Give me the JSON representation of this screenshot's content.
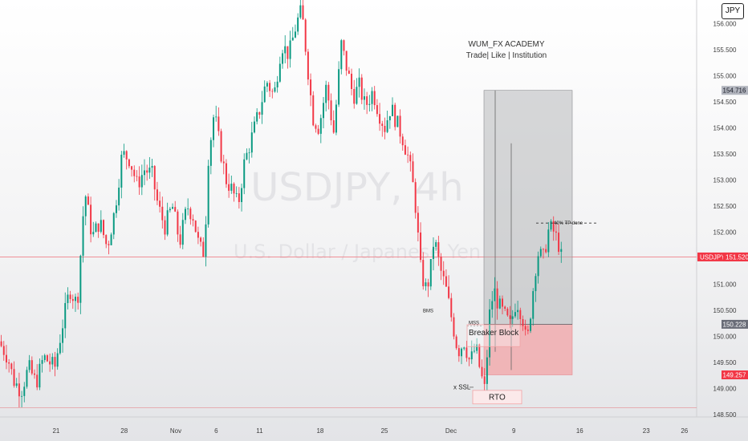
{
  "chart_data": {
    "type": "candlestick",
    "symbol": "USDJPY",
    "timeframe": "4h",
    "watermark_symbol": "USDJPY, 4h",
    "watermark_description": "U.S. Dollar / Japanese Yen",
    "header_title": "WUM_FX ACADEMY",
    "header_subtitle": "Trade| Like | Institution",
    "currency_button": "JPY",
    "ylim": [
      148.45,
      156.45
    ],
    "y_ticks": [
      "156.000",
      "155.500",
      "155.000",
      "154.500",
      "154.000",
      "153.500",
      "153.000",
      "152.500",
      "152.000",
      "151.500",
      "151.000",
      "150.500",
      "150.000",
      "149.500",
      "149.000",
      "148.500"
    ],
    "x_ticks": [
      {
        "label": "21",
        "t": 0.075
      },
      {
        "label": "28",
        "t": 0.166
      },
      {
        "label": "Nov",
        "t": 0.235
      },
      {
        "label": "6",
        "t": 0.289
      },
      {
        "label": "11",
        "t": 0.347
      },
      {
        "label": "18",
        "t": 0.428
      },
      {
        "label": "25",
        "t": 0.514
      },
      {
        "label": "Dec",
        "t": 0.603
      },
      {
        "label": "9",
        "t": 0.687
      },
      {
        "label": "16",
        "t": 0.775
      },
      {
        "label": "23",
        "t": 0.864
      },
      {
        "label": "26",
        "t": 0.915
      }
    ],
    "current_price": {
      "symbol": "USDJPY",
      "value": "151.520",
      "price": 151.52
    },
    "price_tags": [
      {
        "value": "154.716",
        "price": 154.716
      },
      {
        "value": "150.228",
        "price": 150.228
      },
      {
        "value": "149.257",
        "price": 149.257
      }
    ],
    "annotations": {
      "tp_note": "40% TP done",
      "bms": "BMS",
      "mss": "MSS",
      "breaker_block": "Breaker Block",
      "ssl": "x SSL",
      "rto": "RTO"
    },
    "position": {
      "entry": 150.228,
      "stop": 149.257,
      "target": 154.716,
      "tp_hit": 152.17
    },
    "path": [
      [
        0.0,
        149.9
      ],
      [
        0.012,
        149.6
      ],
      [
        0.02,
        149.15
      ],
      [
        0.03,
        148.95
      ],
      [
        0.04,
        149.4
      ],
      [
        0.05,
        149.1
      ],
      [
        0.06,
        149.6
      ],
      [
        0.075,
        149.4
      ],
      [
        0.085,
        150.2
      ],
      [
        0.095,
        150.9
      ],
      [
        0.105,
        150.6
      ],
      [
        0.115,
        152.8
      ],
      [
        0.125,
        151.9
      ],
      [
        0.135,
        152.2
      ],
      [
        0.145,
        151.7
      ],
      [
        0.155,
        152.4
      ],
      [
        0.165,
        153.5
      ],
      [
        0.175,
        153.4
      ],
      [
        0.185,
        152.9
      ],
      [
        0.195,
        153.2
      ],
      [
        0.205,
        153.1
      ],
      [
        0.213,
        152.5
      ],
      [
        0.222,
        152.1
      ],
      [
        0.232,
        152.5
      ],
      [
        0.242,
        151.8
      ],
      [
        0.252,
        152.5
      ],
      [
        0.26,
        152.3
      ],
      [
        0.268,
        151.7
      ],
      [
        0.275,
        151.6
      ],
      [
        0.28,
        153.4
      ],
      [
        0.288,
        154.3
      ],
      [
        0.296,
        153.6
      ],
      [
        0.304,
        153.0
      ],
      [
        0.312,
        152.8
      ],
      [
        0.32,
        152.5
      ],
      [
        0.328,
        153.3
      ],
      [
        0.338,
        153.8
      ],
      [
        0.348,
        154.3
      ],
      [
        0.358,
        154.9
      ],
      [
        0.368,
        154.6
      ],
      [
        0.378,
        155.6
      ],
      [
        0.388,
        155.4
      ],
      [
        0.398,
        156.0
      ],
      [
        0.405,
        156.25
      ],
      [
        0.412,
        155.3
      ],
      [
        0.42,
        154.2
      ],
      [
        0.428,
        154.0
      ],
      [
        0.438,
        154.8
      ],
      [
        0.448,
        153.9
      ],
      [
        0.458,
        155.6
      ],
      [
        0.466,
        155.1
      ],
      [
        0.474,
        154.6
      ],
      [
        0.482,
        154.8
      ],
      [
        0.49,
        154.4
      ],
      [
        0.5,
        154.7
      ],
      [
        0.508,
        154.3
      ],
      [
        0.516,
        154.0
      ],
      [
        0.524,
        154.4
      ],
      [
        0.532,
        154.1
      ],
      [
        0.54,
        153.8
      ],
      [
        0.548,
        153.4
      ],
      [
        0.556,
        152.7
      ],
      [
        0.564,
        151.3
      ],
      [
        0.57,
        150.9
      ],
      [
        0.576,
        151.1
      ],
      [
        0.582,
        151.9
      ],
      [
        0.59,
        151.3
      ],
      [
        0.598,
        150.9
      ],
      [
        0.606,
        150.3
      ],
      [
        0.614,
        149.7
      ],
      [
        0.622,
        149.9
      ],
      [
        0.63,
        149.5
      ],
      [
        0.638,
        149.8
      ],
      [
        0.644,
        149.3
      ],
      [
        0.65,
        148.95
      ],
      [
        0.656,
        150.4
      ],
      [
        0.662,
        150.9
      ],
      [
        0.668,
        150.6
      ],
      [
        0.676,
        150.4
      ],
      [
        0.684,
        150.2
      ],
      [
        0.692,
        150.7
      ],
      [
        0.7,
        150.4
      ],
      [
        0.706,
        149.8
      ],
      [
        0.712,
        150.6
      ],
      [
        0.72,
        151.6
      ],
      [
        0.728,
        151.5
      ],
      [
        0.736,
        152.1
      ],
      [
        0.742,
        152.0
      ],
      [
        0.748,
        151.8
      ],
      [
        0.752,
        151.52
      ]
    ]
  }
}
